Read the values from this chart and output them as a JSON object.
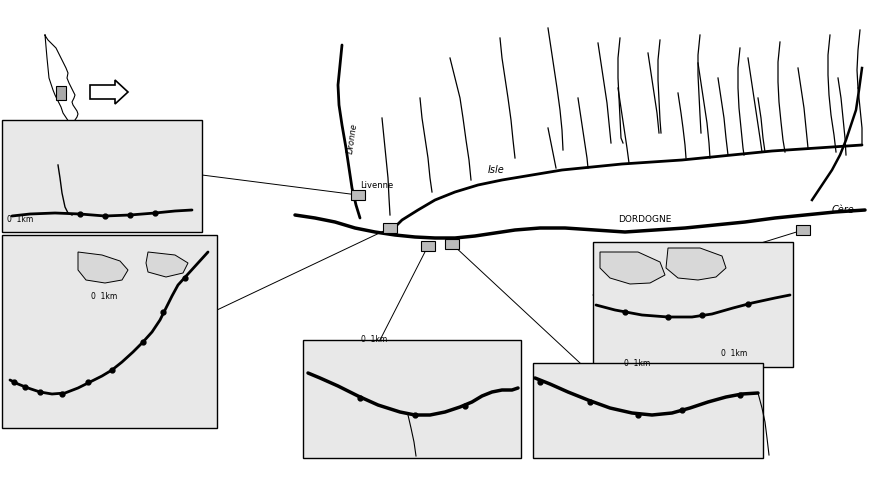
{
  "title": "",
  "background_color": "#ffffff",
  "figure_width": 8.69,
  "figure_height": 4.78,
  "dpi": 100,
  "france_outline_color": "#000000",
  "river_color": "#000000",
  "box_bg_color": "#e8e8e8",
  "box_edge_color": "#000000",
  "sampling_point_color": "#000000",
  "scale_bar_color": "#000000",
  "arrow_color": "#000000",
  "text_color": "#000000",
  "label_Livenne": "Livenne",
  "label_Isle": "Isle",
  "label_Dordogne": "DORDOGNE",
  "label_Cere": "Cère",
  "label_Dronne": "Dronne",
  "label_scale": "0  1km"
}
